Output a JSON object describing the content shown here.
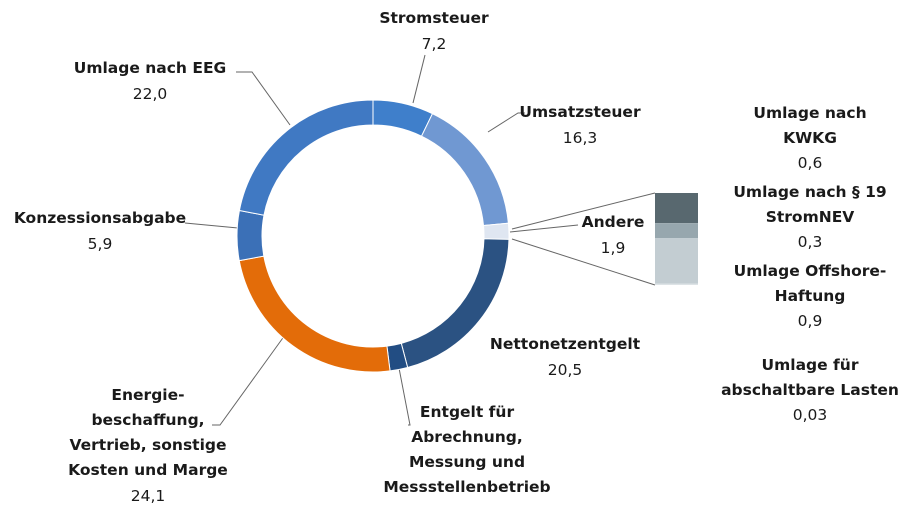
{
  "chart_data": {
    "type": "donut",
    "categories": [
      "Stromsteuer",
      "Umsatzsteuer",
      "Andere",
      "Nettonetzentgelt",
      "Entgelt für\nAbrechnung,\nMessung und\nMessstellenbetrieb",
      "Energie-\nbeschaffung,\nVertrieb, sonstige\nKosten und Marge",
      "Konzessionsabgabe",
      "Umlage nach EEG"
    ],
    "values": [
      7.2,
      16.3,
      1.9,
      20.5,
      2.1,
      24.1,
      5.9,
      22.0
    ],
    "value_labels": [
      "7,2",
      "16,3",
      "1,9",
      "20,5",
      null,
      "24,1",
      "5,9",
      "22,0"
    ],
    "colors": [
      "#3f7fcb",
      "#7098d2",
      "#dfe6f1",
      "#2b5282",
      "#224d83",
      "#e36c09",
      "#3b70b7",
      "#4079c3"
    ],
    "breakdown": {
      "categories": [
        "Umlage nach\nKWKG",
        "Umlage nach § 19\nStromNEV",
        "Umlage Offshore-\nHaftung",
        "Umlage für\nabschaltbare Lasten"
      ],
      "values": [
        0.6,
        0.3,
        0.9,
        0.03
      ],
      "value_labels": [
        "0,6",
        "0,3",
        "0,9",
        "0,03"
      ],
      "colors": [
        "#58686f",
        "#97a7ae",
        "#c3cdd2",
        "#dde3e6"
      ]
    }
  }
}
